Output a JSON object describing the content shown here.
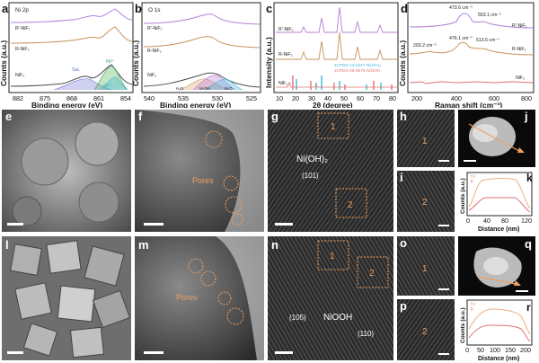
{
  "panels_top": {
    "a": {
      "letter": "a",
      "title": "Ni 2p",
      "xlabel": "Binding energy (eV)",
      "ylabel": "Counts (a.u.)",
      "xticks": [
        "882",
        "875",
        "868",
        "861",
        "854"
      ],
      "series": [
        {
          "name": "R'-NiF₂",
          "color": "#b47fd6"
        },
        {
          "name": "R-NiF₂",
          "color": "#c8925c"
        },
        {
          "name": "NiF₂",
          "color": "#4a4a4a"
        }
      ],
      "fit_labels": [
        "Sat.",
        "Ni³⁺",
        "Ni²⁺"
      ]
    },
    "b": {
      "letter": "b",
      "title": "O 1s",
      "xlabel": "Binding energy (eV)",
      "ylabel": "Counts (a.u.)",
      "xticks": [
        "540",
        "535",
        "530",
        "525"
      ],
      "series": [
        {
          "name": "R'-NiF₂",
          "color": "#b47fd6"
        },
        {
          "name": "R-NiF₂",
          "color": "#c8925c"
        },
        {
          "name": "NiF₂",
          "color": "#4a4a4a"
        }
      ],
      "fit_labels": [
        "H₂O",
        "M-OH",
        "M-O"
      ]
    },
    "c": {
      "letter": "c",
      "xlabel": "2θ (degree)",
      "ylabel": "Intensity (a.u.)",
      "xticks": [
        "10",
        "20",
        "30",
        "40",
        "50",
        "60",
        "70",
        "80"
      ],
      "series": [
        {
          "name": "R'-NiF₂",
          "color": "#b47fd6"
        },
        {
          "name": "R-NiF₂",
          "color": "#c8925c"
        },
        {
          "name": "NiF₂",
          "color": "#e07070"
        }
      ],
      "refs": [
        {
          "name": "JCPDS 14-0117 Ni(OH)₂",
          "color": "#3fb6d9"
        },
        {
          "name": "JCPDS 06-0075 NiOOH",
          "color": "#e07070"
        }
      ]
    },
    "d": {
      "letter": "d",
      "xlabel": "Raman shift (cm⁻¹)",
      "ylabel": "Counts (a.u.)",
      "xticks": [
        "200",
        "400",
        "600",
        "800"
      ],
      "series": [
        {
          "name": "R'-NiF₂",
          "color": "#b47fd6"
        },
        {
          "name": "R-NiF₂",
          "color": "#c8925c"
        },
        {
          "name": "NiF₂",
          "color": "#e07070"
        }
      ],
      "peak_labels": [
        "473.6 cm⁻¹",
        "553.1 cm⁻¹",
        "203.2 cm⁻¹",
        "476.1 cm⁻¹",
        "513.6 cm⁻¹"
      ]
    }
  },
  "panels_images": {
    "e": {
      "letter": "e"
    },
    "f": {
      "letter": "f",
      "annotation": "Pores"
    },
    "g": {
      "letter": "g",
      "annotation": "Ni(OH)₂",
      "hkl": "(101)",
      "boxes": [
        "1",
        "2"
      ]
    },
    "h": {
      "letter": "h",
      "box": "1"
    },
    "i": {
      "letter": "i",
      "box": "2"
    },
    "j": {
      "letter": "j"
    },
    "k": {
      "letter": "k",
      "xlabel": "Distance (nm)",
      "ylabel": "Counts (a.u.)",
      "xticks": [
        "0",
        "40",
        "80",
        "120"
      ],
      "legend": [
        "Ni",
        "F"
      ]
    },
    "l": {
      "letter": "l"
    },
    "m": {
      "letter": "m",
      "annotation": "Pores"
    },
    "n": {
      "letter": "n",
      "annotation": "NiOOH",
      "hkl1": "(105)",
      "hkl2": "(110)",
      "boxes": [
        "1",
        "2"
      ]
    },
    "o": {
      "letter": "o",
      "box": "1"
    },
    "p": {
      "letter": "p",
      "box": "2"
    },
    "q": {
      "letter": "q"
    },
    "r": {
      "letter": "r",
      "xlabel": "Distance (nm)",
      "ylabel": "Counts (a.u.)",
      "xticks": [
        "0",
        "50",
        "100",
        "150",
        "200"
      ],
      "legend": [
        "Ni",
        "F"
      ]
    }
  },
  "colors": {
    "orange": "#f0a060",
    "purple": "#b47fd6",
    "tan": "#c8925c",
    "red": "#e07070",
    "cyan": "#3fb6d9"
  }
}
